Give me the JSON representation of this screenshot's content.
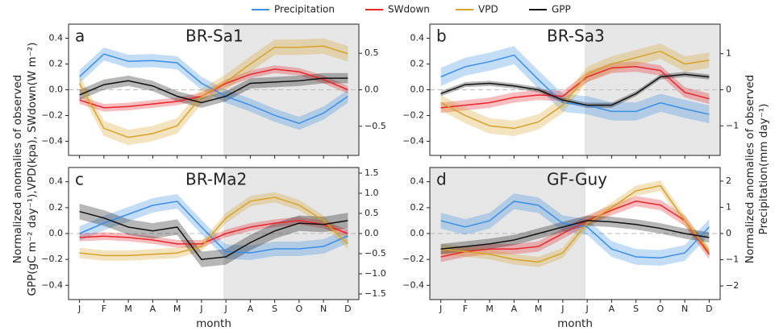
{
  "legend": [
    {
      "name": "Precipitation",
      "color": "#3b8fe6"
    },
    {
      "name": "SWdown",
      "color": "#e8262b"
    },
    {
      "name": "VPD",
      "color": "#d6a32c"
    },
    {
      "name": "GPP",
      "color": "#111111"
    }
  ],
  "y_label": [
    "Normalized anomalies of observed",
    "GPP(gC m⁻² day⁻¹),VPD(kpa), SWdown(W m⁻²)"
  ],
  "y2_label": [
    "Normalized anomalies of observed",
    "Precipitation(mm day⁻¹)"
  ],
  "chart_data": [
    {
      "type": "line",
      "panel_label": "a",
      "title": "BR-Sa1",
      "categories": [
        null,
        null,
        null,
        null,
        null,
        null,
        null,
        null,
        null,
        null,
        null,
        null
      ],
      "xlim": [
        -0.45,
        11.45
      ],
      "shaded": [
        5.9,
        11.45
      ],
      "ylim": [
        -0.51,
        0.51
      ],
      "yticks": [
        {
          "value": -0.4,
          "label": "−0.4"
        },
        {
          "value": -0.2,
          "label": "−0.2"
        },
        {
          "value": 0,
          "label": "0.0"
        },
        0.2,
        0.4
      ],
      "y2lim": [
        -0.9,
        0.9
      ],
      "y2ticks": [
        {
          "value": -0.5,
          "label": "−0.5"
        },
        {
          "value": 0,
          "label": "0.0"
        },
        0.5
      ],
      "series": [
        {
          "axis": "y2",
          "band": 0.09,
          "values": [
            0.18,
            0.49,
            0.39,
            0.4,
            0.37,
            0.09,
            -0.09,
            -0.21,
            -0.35,
            -0.46,
            -0.32,
            -0.09
          ]
        },
        {
          "band": 0.03,
          "values": [
            -0.08,
            -0.14,
            -0.13,
            -0.11,
            -0.09,
            -0.05,
            0.05,
            0.12,
            0.16,
            0.14,
            0.08,
            0.0
          ]
        },
        {
          "band": 0.06,
          "values": [
            0.05,
            -0.3,
            -0.37,
            -0.34,
            -0.28,
            -0.05,
            0.06,
            0.2,
            0.33,
            0.33,
            0.34,
            0.28
          ]
        },
        {
          "band": 0.04,
          "values": [
            -0.04,
            0.04,
            0.07,
            0.03,
            -0.05,
            -0.1,
            -0.05,
            0.05,
            0.06,
            0.07,
            0.09,
            0.09
          ]
        }
      ]
    },
    {
      "type": "line",
      "panel_label": "b",
      "title": "BR-Sa3",
      "categories": [
        null,
        null,
        null,
        null,
        null,
        null,
        null,
        null,
        null,
        null,
        null,
        null
      ],
      "xlim": [
        -0.45,
        11.45
      ],
      "shaded": [
        5.9,
        11.45
      ],
      "ylim": [
        -0.51,
        0.51
      ],
      "yticks": [
        {
          "value": -0.4,
          "label": "−0.4"
        },
        {
          "value": -0.2,
          "label": "−0.2"
        },
        {
          "value": 0,
          "label": "0.0"
        },
        0.2,
        0.4
      ],
      "y2lim": [
        -1.82,
        1.82
      ],
      "y2ticks": [
        {
          "value": -1,
          "label": "−1"
        },
        0,
        1
      ],
      "series": [
        {
          "axis": "y2",
          "band": 0.25,
          "values": [
            0.36,
            0.64,
            0.78,
            0.96,
            0.28,
            -0.36,
            -0.43,
            -0.6,
            -0.6,
            -0.36,
            -0.53,
            -0.68
          ]
        },
        {
          "band": 0.04,
          "values": [
            -0.14,
            -0.12,
            -0.1,
            -0.06,
            -0.04,
            -0.05,
            0.1,
            0.17,
            0.18,
            0.15,
            -0.02,
            -0.07
          ]
        },
        {
          "band": 0.06,
          "values": [
            -0.1,
            -0.2,
            -0.28,
            -0.3,
            -0.25,
            -0.12,
            0.12,
            0.2,
            0.25,
            0.3,
            0.2,
            0.23
          ]
        },
        {
          "band": 0.02,
          "values": [
            -0.03,
            0.04,
            0.05,
            0.03,
            0.0,
            -0.08,
            -0.12,
            -0.12,
            -0.03,
            0.1,
            0.12,
            0.1
          ]
        }
      ]
    },
    {
      "type": "line",
      "panel_label": "c",
      "title": "BR-Ma2",
      "xlabel": "month",
      "categories": [
        "J",
        "F",
        "M",
        "A",
        "M",
        "J",
        "J",
        "A",
        "S",
        "O",
        "N",
        "D"
      ],
      "xlim": [
        -0.45,
        11.45
      ],
      "shaded": [
        5.9,
        11.45
      ],
      "ylim": [
        -0.51,
        0.51
      ],
      "yticks": [
        {
          "value": -0.4,
          "label": "−0.4"
        },
        {
          "value": -0.2,
          "label": "−0.2"
        },
        {
          "value": 0,
          "label": "0.0"
        },
        0.2,
        0.4
      ],
      "y2lim": [
        -1.64,
        1.64
      ],
      "y2ticks": [
        {
          "value": -1.5,
          "label": "−1.5"
        },
        {
          "value": -1,
          "label": "−1.0"
        },
        {
          "value": -0.5,
          "label": "−0.5"
        },
        {
          "value": 0,
          "label": "0.0"
        },
        0.5,
        {
          "value": 1,
          "label": "1.0"
        },
        1.5
      ],
      "series": [
        {
          "axis": "y2",
          "band": 0.18,
          "values": [
            0.0,
            0.26,
            0.48,
            0.7,
            0.8,
            0.16,
            -0.45,
            -0.48,
            -0.38,
            -0.38,
            -0.32,
            -0.06
          ]
        },
        {
          "band": 0.03,
          "values": [
            -0.03,
            -0.02,
            -0.03,
            -0.05,
            -0.08,
            -0.08,
            0.0,
            0.05,
            0.08,
            0.1,
            0.07,
            0.0
          ]
        },
        {
          "band": 0.04,
          "values": [
            -0.15,
            -0.17,
            -0.17,
            -0.16,
            -0.15,
            -0.1,
            0.12,
            0.25,
            0.28,
            0.22,
            0.1,
            -0.08
          ]
        },
        {
          "band": 0.06,
          "values": [
            0.17,
            0.12,
            0.05,
            0.02,
            0.05,
            -0.2,
            -0.18,
            -0.07,
            0.02,
            0.08,
            0.07,
            0.1
          ]
        }
      ]
    },
    {
      "type": "line",
      "panel_label": "d",
      "title": "GF-Guy",
      "xlabel": "month",
      "categories": [
        "J",
        "F",
        "M",
        "A",
        "M",
        "J",
        "J",
        "A",
        "S",
        "O",
        "N",
        "D"
      ],
      "xlim": [
        -0.45,
        11.45
      ],
      "shaded": [
        -0.45,
        5.93
      ],
      "ylim": [
        -0.51,
        0.51
      ],
      "yticks": [
        {
          "value": -0.4,
          "label": "−0.4"
        },
        {
          "value": -0.2,
          "label": "−0.2"
        },
        {
          "value": 0,
          "label": "0.0"
        },
        0.2,
        0.4
      ],
      "y2lim": [
        -2.52,
        2.52
      ],
      "y2ticks": [
        {
          "value": -2,
          "label": "−2"
        },
        {
          "value": -1,
          "label": "−1"
        },
        0,
        1,
        2
      ],
      "series": [
        {
          "axis": "y2",
          "band": 0.3,
          "values": [
            0.49,
            0.25,
            0.49,
            1.23,
            1.08,
            0.39,
            0.25,
            -0.59,
            -0.89,
            -0.93,
            -0.74,
            0.25
          ]
        },
        {
          "band": 0.04,
          "values": [
            -0.18,
            -0.14,
            -0.12,
            -0.12,
            -0.1,
            0.0,
            0.1,
            0.18,
            0.25,
            0.22,
            0.1,
            -0.16
          ]
        },
        {
          "band": 0.04,
          "values": [
            -0.12,
            -0.14,
            -0.16,
            -0.2,
            -0.22,
            -0.15,
            0.08,
            0.2,
            0.33,
            0.37,
            0.1,
            -0.14
          ]
        },
        {
          "band": 0.04,
          "values": [
            -0.12,
            -0.1,
            -0.08,
            -0.05,
            0.0,
            0.05,
            0.1,
            0.09,
            0.07,
            0.04,
            0.0,
            -0.03
          ]
        }
      ]
    }
  ]
}
